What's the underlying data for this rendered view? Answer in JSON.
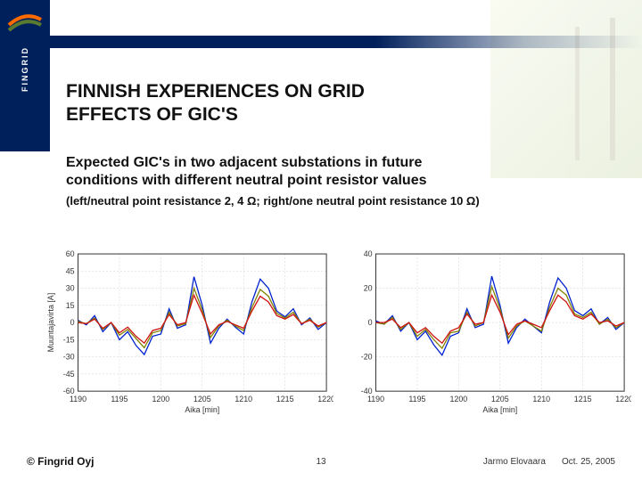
{
  "logo": {
    "brand": "FINGRID"
  },
  "title_line1": "FINNISH EXPERIENCES ON GRID",
  "title_line2": "EFFECTS OF GIC'S",
  "subtitle_line1": "Expected GIC's in two adjacent substations in future",
  "subtitle_line2": "conditions with different neutral point resistor values",
  "note": "(left/neutral point resistance 2, 4 Ω; right/one neutral point resistance 10 Ω)",
  "footer": {
    "copyright": "© Fingrid Oyj",
    "page": "13",
    "author": "Jarmo Elovaara",
    "date": "Oct. 25, 2005"
  },
  "colors": {
    "brand_blue": "#00205b",
    "series_blue": "#0020d0",
    "series_red": "#d01010",
    "series_olive": "#808000",
    "grid": "#cfcfcf",
    "axis": "#333333",
    "bg": "#ffffff"
  },
  "chart_left": {
    "type": "line",
    "xlabel": "Aika [min]",
    "ylabel": "Muuntajavirta [A]",
    "xlim": [
      1190,
      1220
    ],
    "ylim": [
      -60,
      60
    ],
    "xtick_step": 5,
    "ytick_step": 15,
    "line_width": 1.3,
    "grid_color": "#cfcfcf",
    "background_color": "#ffffff",
    "x": [
      1190,
      1191,
      1192,
      1193,
      1194,
      1195,
      1196,
      1197,
      1198,
      1199,
      1200,
      1201,
      1202,
      1203,
      1204,
      1205,
      1206,
      1207,
      1208,
      1209,
      1210,
      1211,
      1212,
      1213,
      1214,
      1215,
      1216,
      1217,
      1218,
      1219,
      1220
    ],
    "series": [
      {
        "name": "blue",
        "color": "#0020d0",
        "y": [
          2,
          -2,
          6,
          -8,
          0,
          -15,
          -8,
          -20,
          -28,
          -12,
          -10,
          12,
          -5,
          -2,
          40,
          15,
          -18,
          -5,
          3,
          -4,
          -10,
          18,
          38,
          30,
          10,
          5,
          12,
          -2,
          4,
          -6,
          0
        ]
      },
      {
        "name": "olive",
        "color": "#808000",
        "y": [
          1,
          -1,
          4,
          -6,
          0,
          -11,
          -6,
          -14,
          -22,
          -9,
          -7,
          9,
          -3,
          -1,
          30,
          11,
          -13,
          -3,
          2,
          -3,
          -7,
          13,
          29,
          23,
          8,
          4,
          9,
          -1,
          3,
          -4,
          0
        ]
      },
      {
        "name": "red",
        "color": "#d01010",
        "y": [
          0,
          -1,
          3,
          -5,
          0,
          -9,
          -4,
          -12,
          -18,
          -7,
          -5,
          7,
          -2,
          0,
          24,
          8,
          -10,
          -2,
          1,
          -2,
          -5,
          10,
          23,
          18,
          6,
          3,
          7,
          -1,
          2,
          -3,
          0
        ]
      }
    ]
  },
  "chart_right": {
    "type": "line",
    "xlabel": "Aika [min]",
    "ylabel": "",
    "xlim": [
      1190,
      1220
    ],
    "ylim": [
      -40,
      40
    ],
    "xtick_step": 5,
    "ytick_step": 20,
    "line_width": 1.3,
    "grid_color": "#cfcfcf",
    "background_color": "#ffffff",
    "x": [
      1190,
      1191,
      1192,
      1193,
      1194,
      1195,
      1196,
      1197,
      1198,
      1199,
      1200,
      1201,
      1202,
      1203,
      1204,
      1205,
      1206,
      1207,
      1208,
      1209,
      1210,
      1211,
      1212,
      1213,
      1214,
      1215,
      1216,
      1217,
      1218,
      1219,
      1220
    ],
    "series": [
      {
        "name": "blue",
        "color": "#0020d0",
        "y": [
          1,
          -1,
          4,
          -5,
          0,
          -10,
          -5,
          -13,
          -19,
          -8,
          -6,
          8,
          -3,
          -1,
          27,
          10,
          -12,
          -3,
          2,
          -2,
          -6,
          12,
          26,
          20,
          7,
          4,
          8,
          -1,
          3,
          -4,
          0
        ]
      },
      {
        "name": "olive",
        "color": "#808000",
        "y": [
          0,
          -1,
          3,
          -4,
          0,
          -8,
          -4,
          -10,
          -15,
          -6,
          -5,
          6,
          -2,
          0,
          21,
          8,
          -9,
          -2,
          1,
          -2,
          -5,
          9,
          20,
          16,
          5,
          3,
          6,
          -1,
          2,
          -3,
          0
        ]
      },
      {
        "name": "red",
        "color": "#d01010",
        "y": [
          0,
          0,
          2,
          -3,
          0,
          -6,
          -3,
          -8,
          -12,
          -5,
          -3,
          5,
          -1,
          0,
          16,
          6,
          -7,
          -1,
          1,
          -1,
          -3,
          7,
          16,
          12,
          4,
          2,
          5,
          0,
          1,
          -2,
          0
        ]
      }
    ]
  }
}
